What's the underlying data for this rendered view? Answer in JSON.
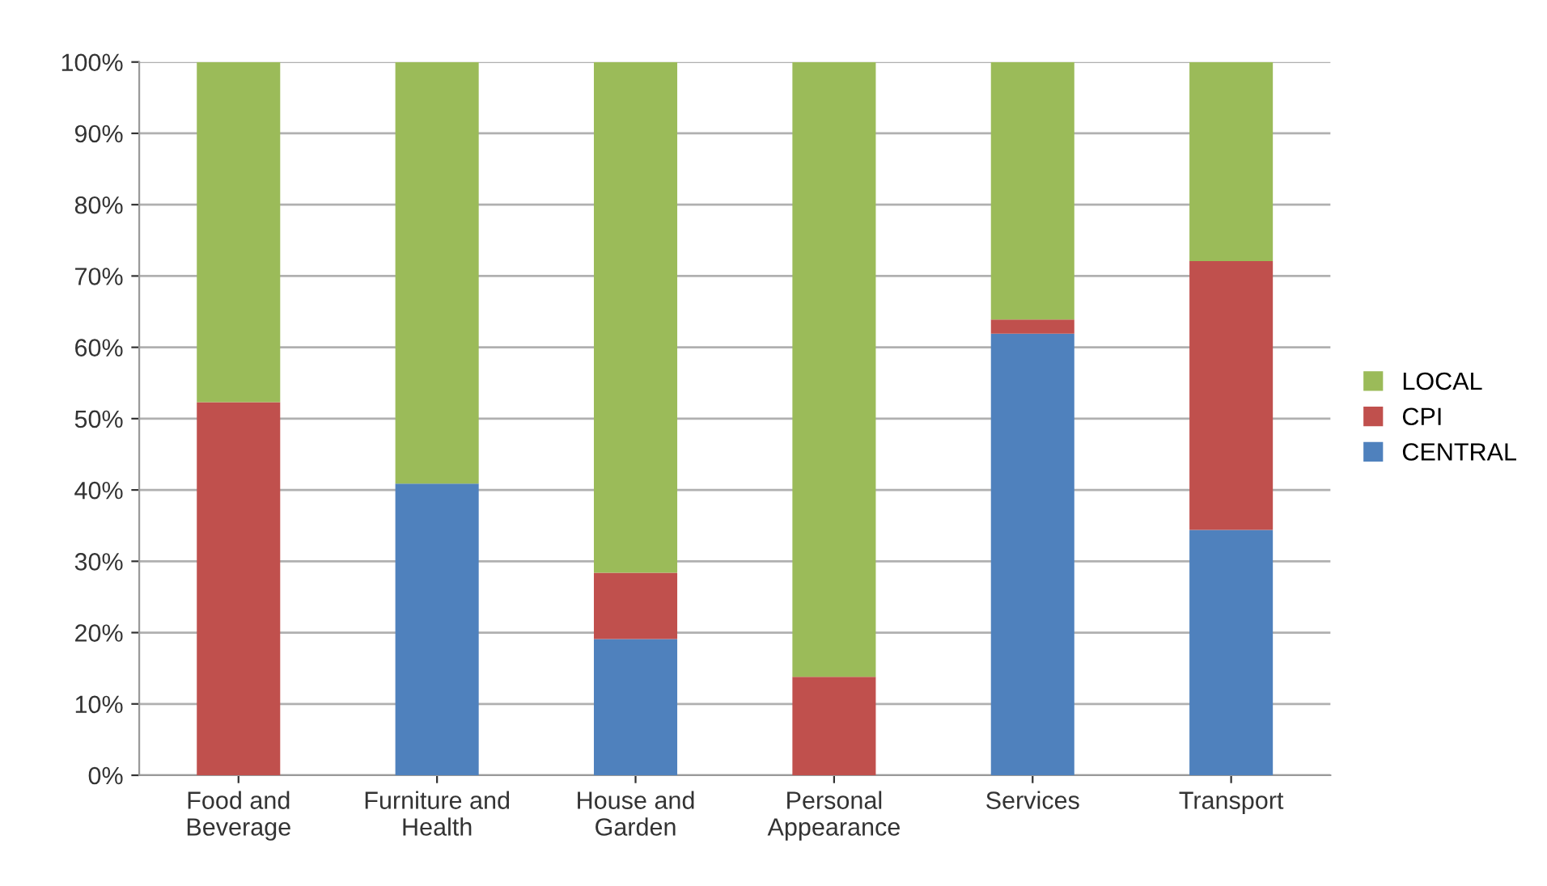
{
  "chart_data": {
    "type": "bar",
    "stacked": true,
    "categories": [
      "Food and\nBeverage",
      "Furniture and\nHealth",
      "House and\nGarden",
      "Personal\nAppearance",
      "Services",
      "Transport"
    ],
    "series": [
      {
        "name": "CENTRAL",
        "color": "#4f81bd",
        "values": [
          0,
          40.9,
          19.1,
          0,
          61.9,
          34.4
        ]
      },
      {
        "name": "CPI",
        "color": "#c0504d",
        "values": [
          52.3,
          0,
          9.3,
          13.8,
          2.0,
          37.7
        ]
      },
      {
        "name": "LOCAL",
        "color": "#9bbb59",
        "values": [
          47.7,
          59.1,
          71.6,
          86.2,
          36.1,
          27.9
        ]
      }
    ],
    "ylim": [
      0,
      100
    ],
    "yticks": [
      {
        "value": 0,
        "label": "0%"
      },
      {
        "value": 10,
        "label": "10%"
      },
      {
        "value": 20,
        "label": "20%"
      },
      {
        "value": 30,
        "label": "30%"
      },
      {
        "value": 40,
        "label": "40%"
      },
      {
        "value": 50,
        "label": "50%"
      },
      {
        "value": 60,
        "label": "60%"
      },
      {
        "value": 70,
        "label": "70%"
      },
      {
        "value": 80,
        "label": "80%"
      },
      {
        "value": 90,
        "label": "90%"
      },
      {
        "value": 100,
        "label": "100%"
      }
    ],
    "grid": "y",
    "legend": "right"
  }
}
